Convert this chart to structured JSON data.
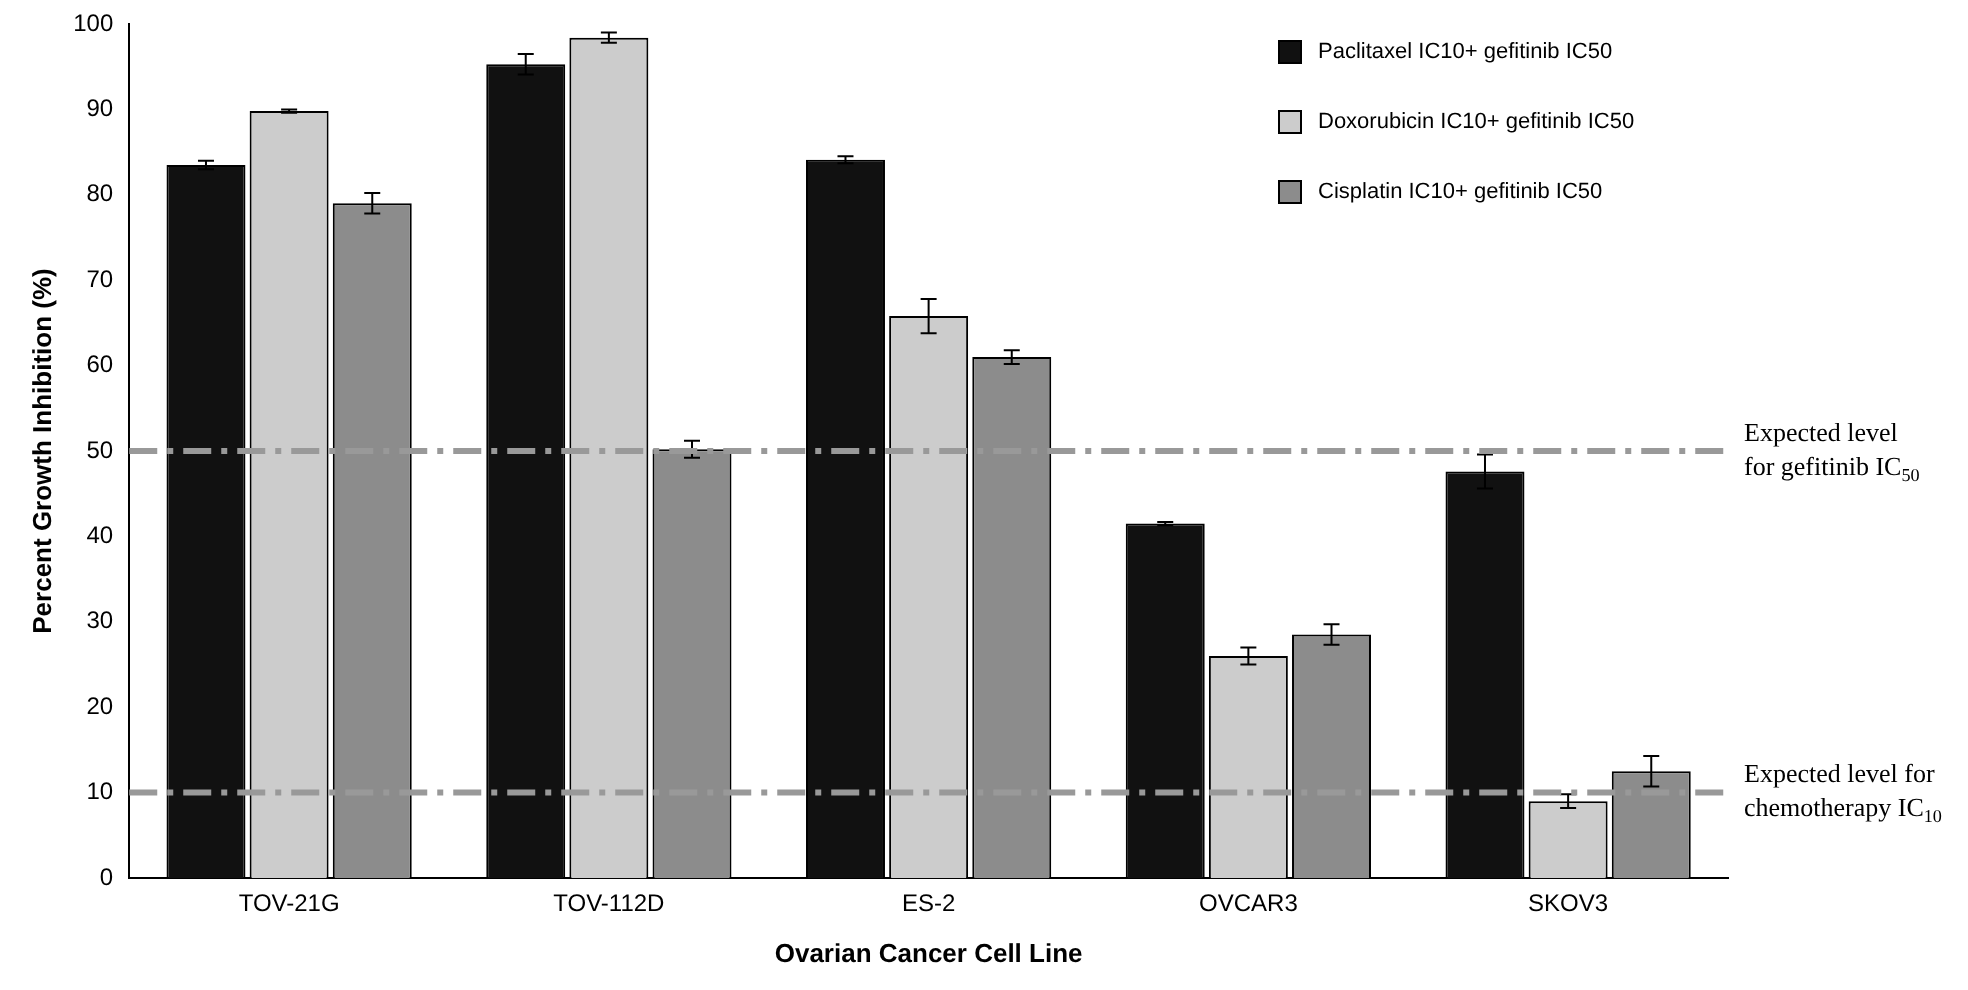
{
  "chart_data": {
    "type": "bar",
    "xlabel": "Ovarian Cancer Cell Line",
    "ylabel": "Percent Growth Inhibition (%)",
    "categories": [
      "TOV-21G",
      "TOV-112D",
      "ES-2",
      "OVCAR3",
      "SKOV3"
    ],
    "series": [
      {
        "name": "Paclitaxel IC10+ gefitinib IC50",
        "color": "#111111",
        "values": [
          83.5,
          95.3,
          84.1,
          41.5,
          47.6
        ],
        "errors": [
          0.5,
          1.2,
          0.4,
          0.2,
          2.0
        ]
      },
      {
        "name": "Doxorubicin IC10+ gefitinib IC50",
        "color": "#cccccc",
        "values": [
          89.8,
          98.4,
          65.8,
          26,
          9
        ],
        "errors": [
          0.2,
          0.6,
          2.0,
          1.0,
          0.8
        ]
      },
      {
        "name": "Cisplatin IC10+ gefitinib IC50",
        "color": "#8c8c8c",
        "values": [
          79,
          50.2,
          61,
          28.5,
          12.5
        ],
        "errors": [
          1.2,
          1.0,
          0.8,
          1.2,
          1.8
        ]
      }
    ],
    "ylim": [
      0,
      100
    ],
    "yticks": [
      0,
      10,
      20,
      30,
      40,
      50,
      60,
      70,
      80,
      90,
      100
    ],
    "grid": false,
    "legend": "top right",
    "ref_lines": [
      {
        "axis": "y",
        "value": 50,
        "label": "Expected level\nfor gefitinib IC$_{50}$",
        "color": "#999999",
        "line_style": "dashdot"
      },
      {
        "axis": "y",
        "value": 10,
        "label": "Expected level for\nchemotherapy IC$_{10}$",
        "color": "#999999",
        "line_style": "dashdot"
      }
    ]
  }
}
